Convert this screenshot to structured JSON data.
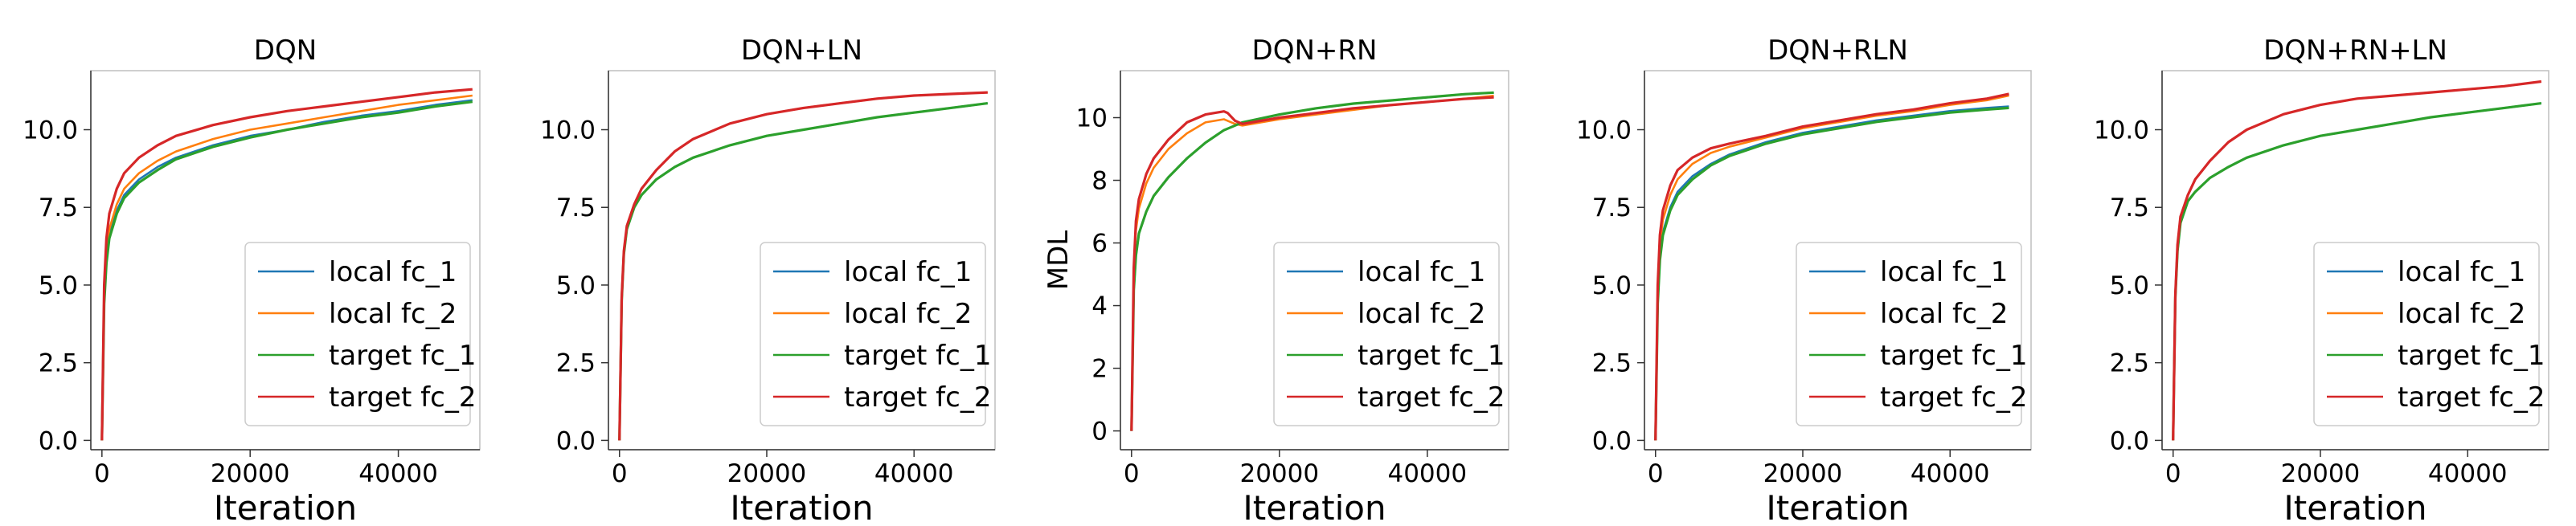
{
  "figure": {
    "series_styles": [
      {
        "name": "local fc_1",
        "color": "#1f77b4"
      },
      {
        "name": "local fc_2",
        "color": "#ff7f0e"
      },
      {
        "name": "target fc_1",
        "color": "#2ca02c"
      },
      {
        "name": "target fc_2",
        "color": "#d62728"
      }
    ]
  },
  "chart_data": [
    {
      "type": "line",
      "title": "DQN",
      "xlabel": "Iteration",
      "ylabel": "",
      "xlim": [
        -1500,
        51000
      ],
      "ylim": [
        -0.3,
        11.9
      ],
      "xticks": [
        0,
        20000,
        40000
      ],
      "xtick_labels": [
        "0",
        "20000",
        "40000"
      ],
      "yticks": [
        0,
        2.5,
        5,
        7.5,
        10
      ],
      "ytick_labels": [
        "0.0",
        "2.5",
        "5.0",
        "7.5",
        "10.0"
      ],
      "legend": "lower-right",
      "grid": false,
      "x": [
        0,
        300,
        600,
        1000,
        2000,
        3000,
        5000,
        7500,
        10000,
        15000,
        20000,
        25000,
        30000,
        35000,
        40000,
        45000,
        50000
      ],
      "series": [
        {
          "name": "local fc_1",
          "values": [
            0,
            4.5,
            5.8,
            6.6,
            7.4,
            7.9,
            8.4,
            8.8,
            9.1,
            9.5,
            9.8,
            10.0,
            10.25,
            10.45,
            10.6,
            10.8,
            10.95
          ]
        },
        {
          "name": "local fc_2",
          "values": [
            0,
            4.6,
            6.0,
            6.8,
            7.6,
            8.1,
            8.6,
            9.0,
            9.3,
            9.7,
            10.0,
            10.2,
            10.4,
            10.6,
            10.8,
            10.95,
            11.1
          ]
        },
        {
          "name": "target fc_1",
          "values": [
            0,
            4.4,
            5.7,
            6.5,
            7.3,
            7.8,
            8.3,
            8.7,
            9.05,
            9.45,
            9.75,
            10.0,
            10.2,
            10.4,
            10.55,
            10.75,
            10.9
          ]
        },
        {
          "name": "target fc_2",
          "values": [
            0,
            5.0,
            6.5,
            7.3,
            8.1,
            8.6,
            9.1,
            9.5,
            9.8,
            10.15,
            10.4,
            10.6,
            10.75,
            10.9,
            11.05,
            11.2,
            11.3
          ]
        }
      ]
    },
    {
      "type": "line",
      "title": "DQN+LN",
      "xlabel": "Iteration",
      "ylabel": "",
      "xlim": [
        -1500,
        51000
      ],
      "ylim": [
        -0.3,
        11.9
      ],
      "xticks": [
        0,
        20000,
        40000
      ],
      "xtick_labels": [
        "0",
        "20000",
        "40000"
      ],
      "yticks": [
        0,
        2.5,
        5,
        7.5,
        10
      ],
      "ytick_labels": [
        "0.0",
        "2.5",
        "5.0",
        "7.5",
        "10.0"
      ],
      "legend": "lower-right",
      "grid": false,
      "x": [
        0,
        300,
        600,
        1000,
        2000,
        3000,
        5000,
        7500,
        10000,
        15000,
        20000,
        25000,
        30000,
        35000,
        40000,
        45000,
        50000
      ],
      "series": [
        {
          "name": "local fc_1",
          "values": [
            0,
            4.5,
            6.0,
            6.8,
            7.5,
            7.9,
            8.4,
            8.8,
            9.1,
            9.5,
            9.8,
            10.0,
            10.2,
            10.4,
            10.55,
            10.7,
            10.85
          ]
        },
        {
          "name": "local fc_2",
          "values": [
            0,
            4.6,
            6.1,
            6.9,
            7.6,
            8.1,
            8.7,
            9.3,
            9.7,
            10.2,
            10.5,
            10.7,
            10.85,
            11.0,
            11.1,
            11.15,
            11.2
          ]
        },
        {
          "name": "target fc_1",
          "values": [
            0,
            4.5,
            6.0,
            6.8,
            7.5,
            7.9,
            8.4,
            8.8,
            9.1,
            9.5,
            9.8,
            10.0,
            10.2,
            10.4,
            10.55,
            10.7,
            10.85
          ]
        },
        {
          "name": "target fc_2",
          "values": [
            0,
            4.6,
            6.1,
            6.9,
            7.6,
            8.1,
            8.7,
            9.3,
            9.7,
            10.2,
            10.5,
            10.7,
            10.85,
            11.0,
            11.1,
            11.15,
            11.2
          ]
        }
      ]
    },
    {
      "type": "line",
      "title": "DQN+RN",
      "xlabel": "Iteration",
      "ylabel": "MDL",
      "xlim": [
        -1500,
        51000
      ],
      "ylim": [
        -0.6,
        11.5
      ],
      "xticks": [
        0,
        20000,
        40000
      ],
      "xtick_labels": [
        "0",
        "20000",
        "40000"
      ],
      "yticks": [
        0,
        2,
        4,
        6,
        8,
        10
      ],
      "ytick_labels": [
        "0",
        "2",
        "4",
        "6",
        "8",
        "10"
      ],
      "legend": "lower-right",
      "grid": false,
      "x": [
        0,
        300,
        600,
        1000,
        2000,
        3000,
        5000,
        7500,
        10000,
        12500,
        13000,
        14000,
        15000,
        20000,
        25000,
        30000,
        35000,
        40000,
        45000,
        49000
      ],
      "series": [
        {
          "name": "local fc_1",
          "values": [
            0,
            4.5,
            5.6,
            6.3,
            7.0,
            7.5,
            8.1,
            8.7,
            9.2,
            9.6,
            9.65,
            9.75,
            9.85,
            10.1,
            10.3,
            10.45,
            10.55,
            10.65,
            10.75,
            10.8
          ]
        },
        {
          "name": "local fc_2",
          "values": [
            0,
            5.0,
            6.4,
            7.1,
            7.9,
            8.4,
            9.0,
            9.5,
            9.85,
            9.95,
            9.9,
            9.8,
            9.75,
            9.95,
            10.1,
            10.25,
            10.4,
            10.5,
            10.6,
            10.7
          ]
        },
        {
          "name": "target fc_1",
          "values": [
            0,
            4.5,
            5.6,
            6.3,
            7.0,
            7.5,
            8.1,
            8.7,
            9.2,
            9.6,
            9.65,
            9.75,
            9.85,
            10.1,
            10.3,
            10.45,
            10.55,
            10.65,
            10.75,
            10.8
          ]
        },
        {
          "name": "target fc_2",
          "values": [
            0,
            5.2,
            6.7,
            7.4,
            8.2,
            8.7,
            9.3,
            9.85,
            10.1,
            10.2,
            10.15,
            9.9,
            9.8,
            10.0,
            10.15,
            10.3,
            10.4,
            10.5,
            10.6,
            10.65
          ]
        }
      ]
    },
    {
      "type": "line",
      "title": "DQN+RLN",
      "xlabel": "Iteration",
      "ylabel": "",
      "xlim": [
        -1500,
        51000
      ],
      "ylim": [
        -0.3,
        11.9
      ],
      "xticks": [
        0,
        20000,
        40000
      ],
      "xtick_labels": [
        "0",
        "20000",
        "40000"
      ],
      "yticks": [
        0,
        2.5,
        5,
        7.5,
        10
      ],
      "ytick_labels": [
        "0.0",
        "2.5",
        "5.0",
        "7.5",
        "10.0"
      ],
      "legend": "lower-right",
      "grid": false,
      "x": [
        0,
        300,
        600,
        1000,
        2000,
        3000,
        5000,
        7500,
        10000,
        15000,
        20000,
        25000,
        30000,
        35000,
        40000,
        45000,
        48000
      ],
      "series": [
        {
          "name": "local fc_1",
          "values": [
            0,
            4.5,
            5.9,
            6.7,
            7.5,
            8.0,
            8.5,
            8.9,
            9.2,
            9.6,
            9.9,
            10.1,
            10.3,
            10.45,
            10.6,
            10.7,
            10.75
          ]
        },
        {
          "name": "local fc_2",
          "values": [
            0,
            4.8,
            6.3,
            7.1,
            7.9,
            8.4,
            8.9,
            9.25,
            9.45,
            9.75,
            10.05,
            10.25,
            10.45,
            10.6,
            10.8,
            10.95,
            11.1
          ]
        },
        {
          "name": "target fc_1",
          "values": [
            0,
            4.4,
            5.8,
            6.6,
            7.4,
            7.9,
            8.4,
            8.85,
            9.15,
            9.55,
            9.85,
            10.05,
            10.25,
            10.4,
            10.55,
            10.65,
            10.7
          ]
        },
        {
          "name": "target fc_2",
          "values": [
            0,
            5.0,
            6.6,
            7.4,
            8.2,
            8.7,
            9.1,
            9.4,
            9.55,
            9.8,
            10.1,
            10.3,
            10.5,
            10.65,
            10.85,
            11.0,
            11.15
          ]
        }
      ]
    },
    {
      "type": "line",
      "title": "DQN+RN+LN",
      "xlabel": "Iteration",
      "ylabel": "",
      "xlim": [
        -1500,
        51000
      ],
      "ylim": [
        -0.3,
        11.9
      ],
      "xticks": [
        0,
        20000,
        40000
      ],
      "xtick_labels": [
        "0",
        "20000",
        "40000"
      ],
      "yticks": [
        0,
        2.5,
        5,
        7.5,
        10
      ],
      "ytick_labels": [
        "0.0",
        "2.5",
        "5.0",
        "7.5",
        "10.0"
      ],
      "legend": "lower-right",
      "grid": false,
      "x": [
        0,
        300,
        600,
        1000,
        2000,
        3000,
        5000,
        7500,
        10000,
        15000,
        20000,
        25000,
        30000,
        35000,
        40000,
        45000,
        50000
      ],
      "series": [
        {
          "name": "local fc_1",
          "values": [
            0,
            4.6,
            6.1,
            7.0,
            7.7,
            8.0,
            8.45,
            8.8,
            9.1,
            9.5,
            9.8,
            10.0,
            10.2,
            10.4,
            10.55,
            10.7,
            10.85
          ]
        },
        {
          "name": "local fc_2",
          "values": [
            0,
            4.7,
            6.3,
            7.2,
            7.9,
            8.4,
            9.0,
            9.6,
            10.0,
            10.5,
            10.8,
            11.0,
            11.1,
            11.2,
            11.3,
            11.4,
            11.55
          ]
        },
        {
          "name": "target fc_1",
          "values": [
            0,
            4.6,
            6.1,
            7.0,
            7.7,
            8.0,
            8.45,
            8.8,
            9.1,
            9.5,
            9.8,
            10.0,
            10.2,
            10.4,
            10.55,
            10.7,
            10.85
          ]
        },
        {
          "name": "target fc_2",
          "values": [
            0,
            4.7,
            6.3,
            7.2,
            7.9,
            8.4,
            9.0,
            9.6,
            10.0,
            10.5,
            10.8,
            11.0,
            11.1,
            11.2,
            11.3,
            11.4,
            11.55
          ]
        }
      ]
    }
  ]
}
